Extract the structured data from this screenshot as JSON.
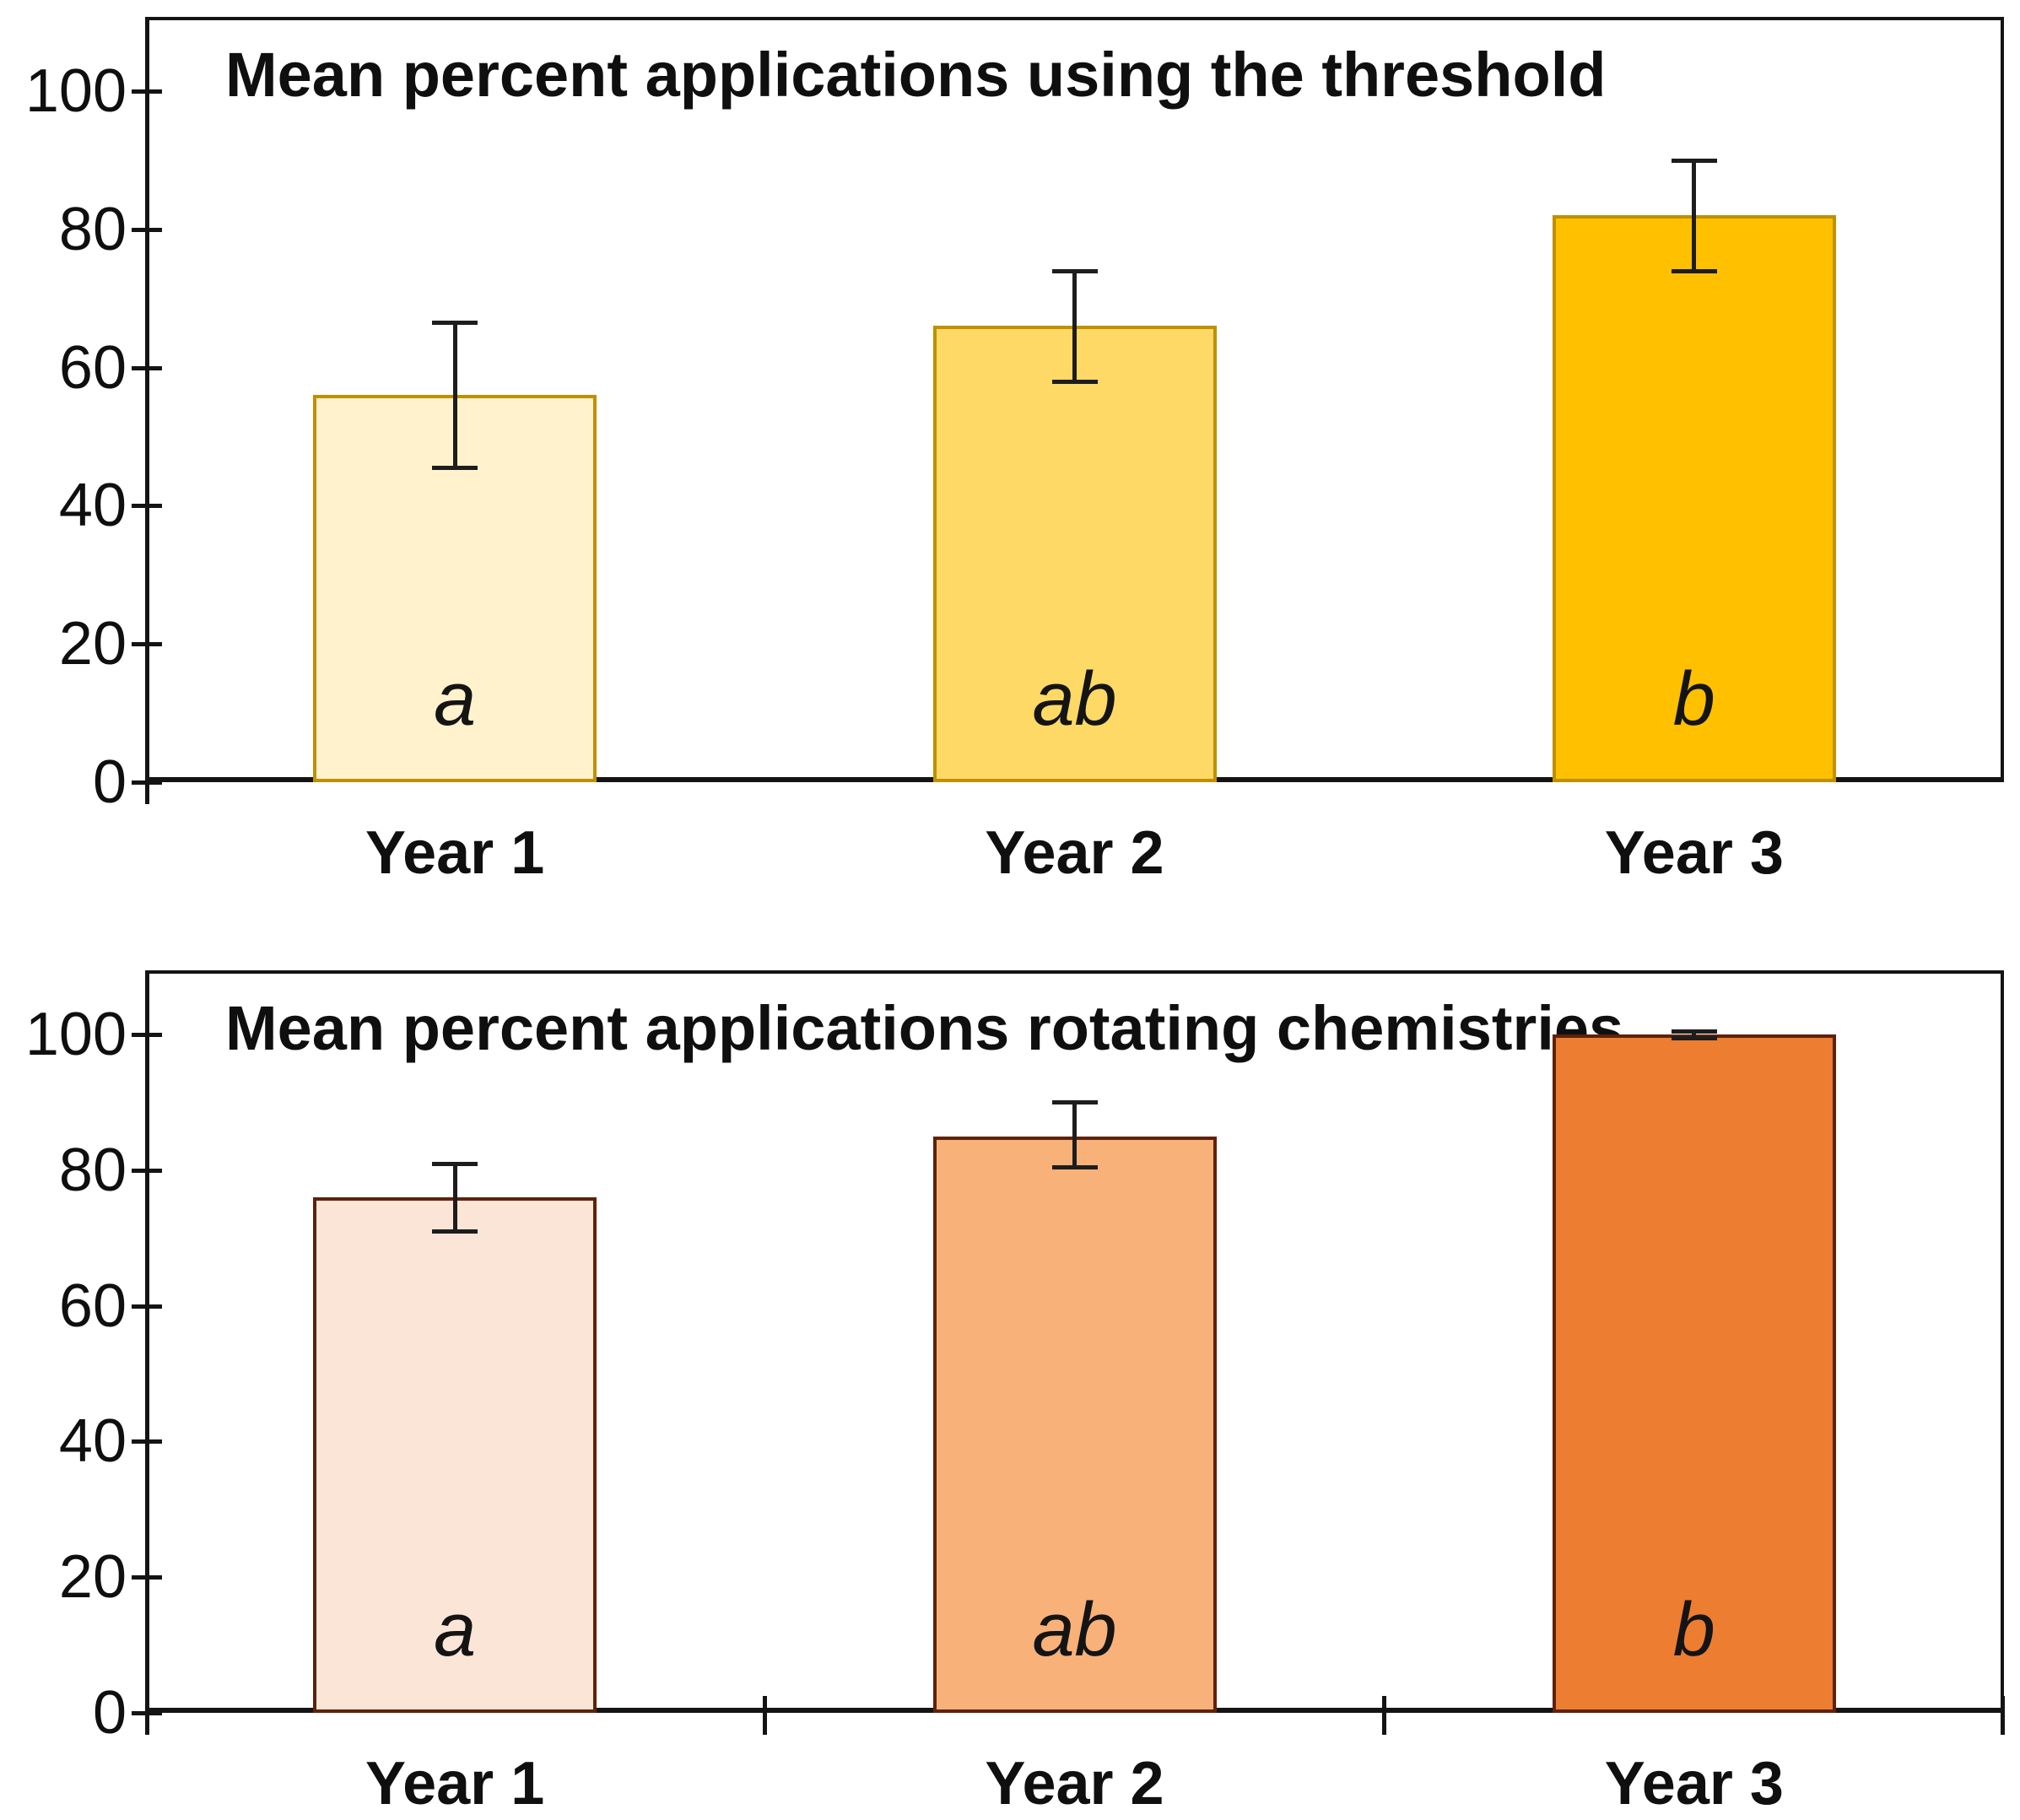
{
  "style": {
    "background": "#ffffff",
    "axis_color": "#141414",
    "text_color": "#0f0f0f",
    "error_bar_color": "#1d1d1d"
  },
  "chart_data": [
    {
      "type": "bar",
      "title": "Mean percent applications using the threshold",
      "categories": [
        "Year 1",
        "Year 2",
        "Year 3"
      ],
      "values": [
        56,
        66,
        82
      ],
      "error_plus": [
        10.5,
        8,
        8
      ],
      "error_minus": [
        10.5,
        8,
        8
      ],
      "sig_letters": [
        "a",
        "ab",
        "b"
      ],
      "bar_fill_colors": [
        "#FFF2CC",
        "#FFD966",
        "#FFC000"
      ],
      "bar_border_color": "#BF9000",
      "xlabel": "",
      "ylabel": "",
      "ylim": [
        0,
        100
      ],
      "yticks": [
        0,
        20,
        40,
        60,
        80,
        100
      ],
      "grid": false,
      "legend": false,
      "category_boundary_ticks": false
    },
    {
      "type": "bar",
      "title": "Mean percent applications rotating chemistries",
      "categories": [
        "Year 1",
        "Year 2",
        "Year 3"
      ],
      "values": [
        76,
        85,
        100
      ],
      "error_plus": [
        5,
        5,
        0.5
      ],
      "error_minus": [
        5,
        4.5,
        0.5
      ],
      "sig_letters": [
        "a",
        "ab",
        "b"
      ],
      "bar_fill_colors": [
        "#FBE5D6",
        "#F8B179",
        "#ED7D31"
      ],
      "bar_border_color": "#5E220B",
      "xlabel": "",
      "ylabel": "",
      "ylim": [
        0,
        100
      ],
      "yticks": [
        0,
        20,
        40,
        60,
        80,
        100
      ],
      "grid": false,
      "legend": false,
      "category_boundary_ticks": true
    }
  ]
}
